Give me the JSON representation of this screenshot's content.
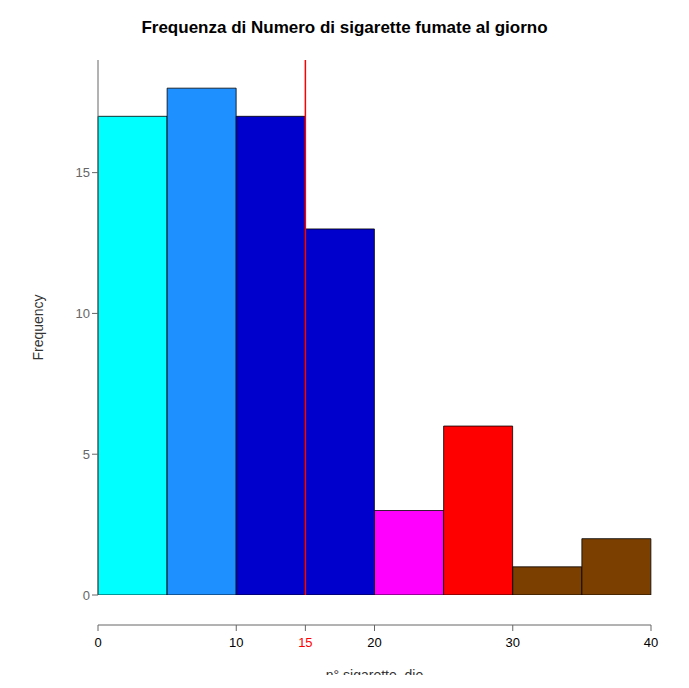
{
  "chart_data": {
    "type": "histogram",
    "title": "Frequenza di Numero di sigarette fumate al giorno",
    "xlabel": "n° sigarette_die",
    "ylabel": "Frequency",
    "bins": [
      0,
      5,
      10,
      15,
      20,
      25,
      30,
      35,
      40
    ],
    "values": [
      17,
      18,
      17,
      13,
      3,
      6,
      1,
      2
    ],
    "colors": [
      "#00FFFF",
      "#1E90FF",
      "#0000CD",
      "#0000CD",
      "#FF00FF",
      "#FF0000",
      "#7B3F00",
      "#7B3F00"
    ],
    "vline": {
      "x": 15,
      "color": "#FF0000"
    },
    "xlim": [
      0,
      40
    ],
    "ylim": [
      0,
      19
    ],
    "xticks": [
      0,
      10,
      15,
      20,
      30,
      40
    ],
    "xtick_colors": [
      "black",
      "black",
      "red",
      "black",
      "black",
      "black"
    ],
    "yticks": [
      0,
      5,
      10,
      15
    ],
    "grid": false
  }
}
